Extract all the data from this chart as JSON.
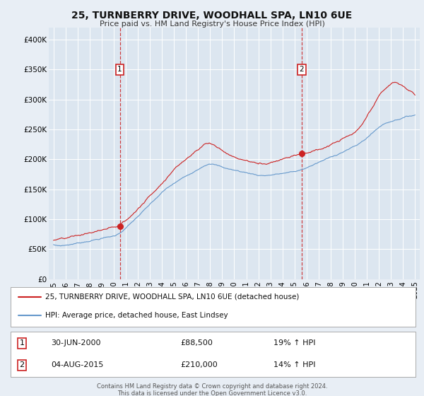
{
  "title": "25, TURNBERRY DRIVE, WOODHALL SPA, LN10 6UE",
  "subtitle": "Price paid vs. HM Land Registry's House Price Index (HPI)",
  "bg_color": "#e8eef5",
  "plot_bg_color": "#dce6f0",
  "red_color": "#cc2222",
  "blue_color": "#6699cc",
  "marker1_date": 2000.5,
  "marker1_price": 88500,
  "marker2_date": 2015.6,
  "marker2_price": 210000,
  "vline1_x": 2000.5,
  "vline2_x": 2015.6,
  "legend_red_label": "25, TURNBERRY DRIVE, WOODHALL SPA, LN10 6UE (detached house)",
  "legend_blue_label": "HPI: Average price, detached house, East Lindsey",
  "annotation1_date": "30-JUN-2000",
  "annotation1_price": "£88,500",
  "annotation1_hpi": "19% ↑ HPI",
  "annotation2_date": "04-AUG-2015",
  "annotation2_price": "£210,000",
  "annotation2_hpi": "14% ↑ HPI",
  "footer": "Contains HM Land Registry data © Crown copyright and database right 2024.\nThis data is licensed under the Open Government Licence v3.0.",
  "ylim": [
    0,
    420000
  ],
  "xlim": [
    1994.6,
    2025.4
  ],
  "yticks": [
    0,
    50000,
    100000,
    150000,
    200000,
    250000,
    300000,
    350000,
    400000
  ],
  "ytick_labels": [
    "£0",
    "£50K",
    "£100K",
    "£150K",
    "£200K",
    "£250K",
    "£300K",
    "£350K",
    "£400K"
  ],
  "xtick_years": [
    1995,
    1996,
    1997,
    1998,
    1999,
    2000,
    2001,
    2002,
    2003,
    2004,
    2005,
    2006,
    2007,
    2008,
    2009,
    2010,
    2011,
    2012,
    2013,
    2014,
    2015,
    2016,
    2017,
    2018,
    2019,
    2020,
    2021,
    2022,
    2023,
    2024,
    2025
  ]
}
